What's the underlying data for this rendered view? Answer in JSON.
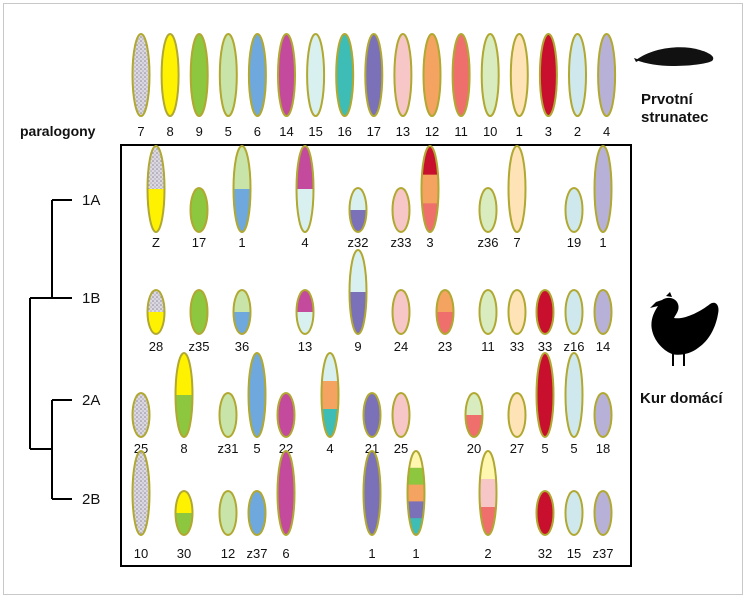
{
  "labels": {
    "paralogony": "paralogony",
    "organism_top_line1": "Prvotní",
    "organism_top_line2": "strunatec",
    "organism_bottom": "Kur domácí",
    "groups": [
      "1A",
      "1B",
      "2A",
      "2B"
    ]
  },
  "icons": {
    "top_organism": "lancelet-silhouette-icon",
    "bottom_organism": "chicken-silhouette-icon"
  },
  "colors": {
    "outline": "#b0a830",
    "frame": "#000000",
    "cladogram": "#000000",
    "palette": {
      "c7": "#d6d2dc",
      "c8": "#fff200",
      "c9": "#8dc63f",
      "c5": "#c9e4a8",
      "c6": "#6fa8dc",
      "c14": "#c34a9c",
      "c15": "#d9f0f0",
      "c16": "#3dbdb5",
      "c17": "#7b71b8",
      "c13": "#f7c6c7",
      "c12": "#f4a460",
      "c11": "#ef6f6c",
      "c10": "#d8ecc0",
      "c1": "#fde3b5",
      "c3": "#c8102e",
      "c2": "#cfe8ee",
      "c4": "#b7b1d8",
      "cream": "#fff6b0"
    }
  },
  "top_row": [
    {
      "label": "7",
      "fill": "c7",
      "pattern": true
    },
    {
      "label": "8",
      "fill": "c8"
    },
    {
      "label": "9",
      "fill": "c9"
    },
    {
      "label": "5",
      "fill": "c5"
    },
    {
      "label": "6",
      "fill": "c6"
    },
    {
      "label": "14",
      "fill": "c14"
    },
    {
      "label": "15",
      "fill": "c15"
    },
    {
      "label": "16",
      "fill": "c16"
    },
    {
      "label": "17",
      "fill": "c17"
    },
    {
      "label": "13",
      "fill": "c13"
    },
    {
      "label": "12",
      "fill": "c12"
    },
    {
      "label": "11",
      "fill": "c11"
    },
    {
      "label": "10",
      "fill": "c10"
    },
    {
      "label": "1",
      "fill": "c1"
    },
    {
      "label": "3",
      "fill": "c3"
    },
    {
      "label": "2",
      "fill": "c2"
    },
    {
      "label": "4",
      "fill": "c4"
    }
  ],
  "rows": [
    {
      "group": "1A",
      "items": [
        {
          "label": "Z",
          "size": "L",
          "segs": [
            [
              "c7",
              1,
              true
            ],
            [
              "c8",
              1
            ]
          ]
        },
        {
          "label": "17",
          "size": "S",
          "segs": [
            [
              "c9",
              1
            ]
          ]
        },
        {
          "label": "1",
          "size": "L",
          "segs": [
            [
              "c5",
              1
            ],
            [
              "c6",
              1
            ]
          ]
        },
        {
          "label": "4",
          "size": "L",
          "segs": [
            [
              "c14",
              1
            ],
            [
              "c15",
              1
            ]
          ]
        },
        {
          "label": "z32",
          "size": "S",
          "segs": [
            [
              "c15",
              1
            ],
            [
              "c17",
              1
            ]
          ]
        },
        {
          "label": "z33",
          "size": "S",
          "segs": [
            [
              "c13",
              1
            ]
          ]
        },
        {
          "label": "3",
          "size": "L",
          "segs": [
            [
              "c3",
              1
            ],
            [
              "c12",
              1
            ],
            [
              "c11",
              1
            ]
          ]
        },
        {
          "label": "z36",
          "size": "S",
          "segs": [
            [
              "c10",
              1
            ]
          ]
        },
        {
          "label": "7",
          "size": "L",
          "segs": [
            [
              "c1",
              1
            ]
          ]
        },
        {
          "label": "19",
          "size": "S",
          "segs": [
            [
              "c2",
              1
            ]
          ]
        },
        {
          "label": "1",
          "size": "L",
          "segs": [
            [
              "c4",
              1
            ]
          ]
        }
      ]
    },
    {
      "group": "1B",
      "items": [
        {
          "label": "28",
          "size": "S",
          "segs": [
            [
              "c7",
              1,
              true
            ],
            [
              "c8",
              1
            ]
          ]
        },
        {
          "label": "z35",
          "size": "S",
          "segs": [
            [
              "c9",
              1
            ]
          ]
        },
        {
          "label": "36",
          "size": "S",
          "segs": [
            [
              "c5",
              1
            ],
            [
              "c6",
              1
            ]
          ]
        },
        {
          "label": "13",
          "size": "S",
          "segs": [
            [
              "c14",
              1
            ],
            [
              "c15",
              1
            ]
          ]
        },
        {
          "label": "9",
          "size": "XL",
          "segs": [
            [
              "c15",
              1
            ],
            [
              "c17",
              1
            ]
          ]
        },
        {
          "label": "24",
          "size": "S",
          "segs": [
            [
              "c13",
              1
            ]
          ]
        },
        {
          "label": "23",
          "size": "S",
          "segs": [
            [
              "c12",
              1
            ],
            [
              "c11",
              1
            ]
          ]
        },
        {
          "label": "11",
          "size": "S",
          "segs": [
            [
              "c10",
              1
            ]
          ]
        },
        {
          "label": "33",
          "size": "S",
          "segs": [
            [
              "c1",
              1
            ]
          ]
        },
        {
          "label": "33",
          "size": "S",
          "segs": [
            [
              "c3",
              1
            ]
          ]
        },
        {
          "label": "z16",
          "size": "S",
          "segs": [
            [
              "c2",
              1
            ]
          ]
        },
        {
          "label": "14",
          "size": "S",
          "segs": [
            [
              "c4",
              1
            ]
          ]
        }
      ]
    },
    {
      "group": "2A",
      "items": [
        {
          "label": "25",
          "size": "S",
          "segs": [
            [
              "c7",
              1,
              true
            ]
          ]
        },
        {
          "label": "8",
          "size": "XL",
          "segs": [
            [
              "c8",
              1
            ],
            [
              "c9",
              1
            ]
          ]
        },
        {
          "label": "z31",
          "size": "S",
          "segs": [
            [
              "c5",
              1
            ]
          ]
        },
        {
          "label": "5",
          "size": "XL",
          "segs": [
            [
              "c6",
              1
            ]
          ]
        },
        {
          "label": "22",
          "size": "S",
          "segs": [
            [
              "c14",
              1
            ]
          ]
        },
        {
          "label": "4",
          "size": "XL",
          "segs": [
            [
              "c15",
              1
            ],
            [
              "c12",
              1
            ],
            [
              "c16",
              1
            ]
          ]
        },
        {
          "label": "21",
          "size": "S",
          "segs": [
            [
              "c17",
              1
            ]
          ]
        },
        {
          "label": "25",
          "size": "S",
          "segs": [
            [
              "c13",
              1
            ]
          ]
        },
        {
          "label": "20",
          "size": "S",
          "segs": [
            [
              "c10",
              1
            ],
            [
              "c11",
              1
            ]
          ]
        },
        {
          "label": "27",
          "size": "S",
          "segs": [
            [
              "c1",
              1
            ]
          ]
        },
        {
          "label": "5",
          "size": "XL",
          "segs": [
            [
              "c3",
              1
            ]
          ]
        },
        {
          "label": "5",
          "size": "XL",
          "segs": [
            [
              "c2",
              1
            ]
          ]
        },
        {
          "label": "18",
          "size": "S",
          "segs": [
            [
              "c4",
              1
            ]
          ]
        }
      ]
    },
    {
      "group": "2B",
      "items": [
        {
          "label": "10",
          "size": "XL",
          "segs": [
            [
              "c7",
              1,
              true
            ]
          ]
        },
        {
          "label": "30",
          "size": "S",
          "segs": [
            [
              "c8",
              1
            ],
            [
              "c9",
              1
            ]
          ]
        },
        {
          "label": "12",
          "size": "S",
          "segs": [
            [
              "c5",
              1
            ]
          ]
        },
        {
          "label": "z37",
          "size": "S",
          "segs": [
            [
              "c6",
              1
            ]
          ]
        },
        {
          "label": "6",
          "size": "XL",
          "segs": [
            [
              "c14",
              1
            ]
          ]
        },
        {
          "label": "1",
          "size": "XL",
          "segs": [
            [
              "c17",
              1
            ]
          ]
        },
        {
          "label": "1",
          "size": "XL",
          "segs": [
            [
              "cream",
              1
            ],
            [
              "c9",
              1
            ],
            [
              "c12",
              1
            ],
            [
              "c17",
              1
            ],
            [
              "c16",
              1
            ]
          ]
        },
        {
          "label": "2",
          "size": "XL",
          "segs": [
            [
              "cream",
              1
            ],
            [
              "c13",
              1
            ],
            [
              "c11",
              1
            ]
          ]
        },
        {
          "label": "32",
          "size": "S",
          "segs": [
            [
              "c3",
              1
            ]
          ]
        },
        {
          "label": "15",
          "size": "S",
          "segs": [
            [
              "c2",
              1
            ]
          ]
        },
        {
          "label": "z37",
          "size": "S",
          "segs": [
            [
              "c4",
              1
            ]
          ]
        }
      ]
    }
  ]
}
